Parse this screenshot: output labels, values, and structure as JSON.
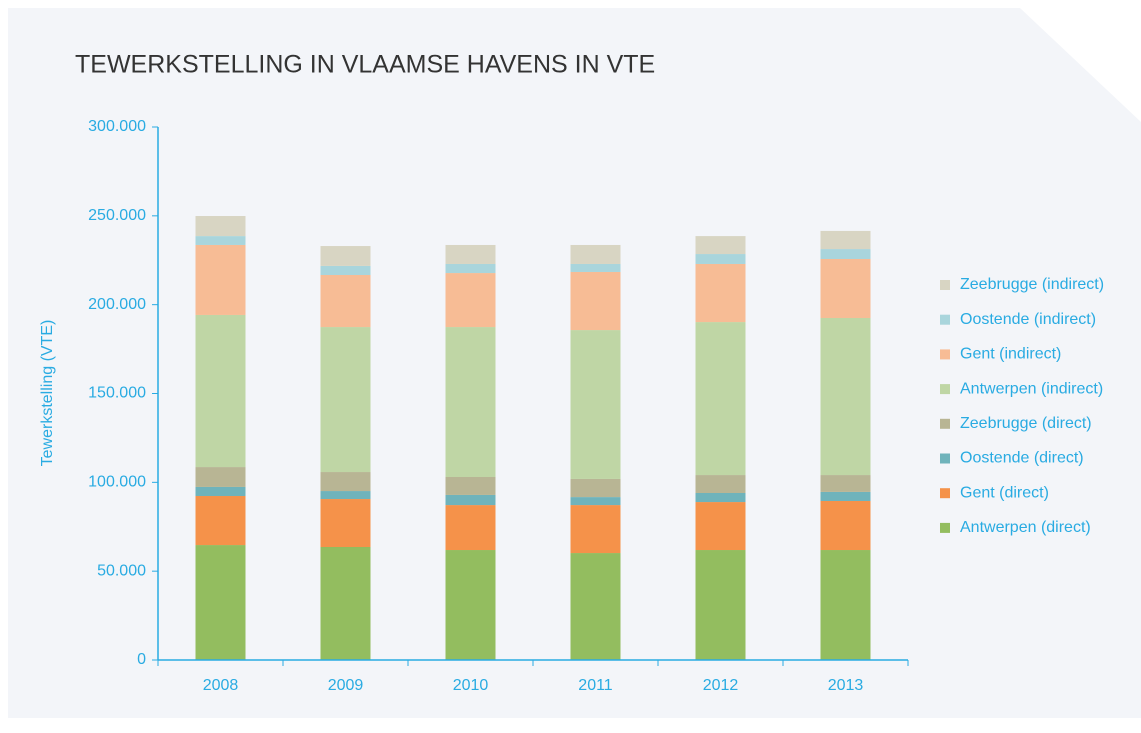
{
  "chart_data": {
    "type": "stacked_bar",
    "title": "TEWERKSTELLING IN VLAAMSE HAVENS IN VTE",
    "y_label": "Tewerkstelling (VTE)",
    "categories": [
      "2008",
      "2009",
      "2010",
      "2011",
      "2012",
      "2013"
    ],
    "series": [
      {
        "name": "Antwerpen (direct)",
        "color": "#93bd5f",
        "values": [
          64700,
          63600,
          61900,
          60200,
          61900,
          61900
        ]
      },
      {
        "name": "Gent (direct)",
        "color": "#f5924a",
        "values": [
          27600,
          27000,
          25300,
          27000,
          27000,
          27600
        ]
      },
      {
        "name": "Oostende (direct)",
        "color": "#6fb3bb",
        "values": [
          5100,
          4500,
          5700,
          4500,
          5100,
          5100
        ]
      },
      {
        "name": "Zeebrugge (direct)",
        "color": "#b8b594",
        "values": [
          11200,
          10700,
          10100,
          10200,
          10100,
          9500
        ]
      },
      {
        "name": "Antwerpen (indirect)",
        "color": "#bfd6a5",
        "values": [
          85600,
          81600,
          84400,
          83800,
          86100,
          88400
        ]
      },
      {
        "name": "Gent (indirect)",
        "color": "#f7bc95",
        "values": [
          39400,
          29300,
          30400,
          32700,
          32700,
          33200
        ]
      },
      {
        "name": "Oostende (indirect)",
        "color": "#a9d5dc",
        "values": [
          5000,
          5100,
          5100,
          4500,
          5600,
          5600
        ]
      },
      {
        "name": "Zeebrugge (indirect)",
        "color": "#d8d5c3",
        "values": [
          11300,
          11200,
          10700,
          10700,
          10100,
          10200
        ]
      }
    ],
    "ylim": [
      0,
      300000
    ],
    "yticks": [
      0,
      {
        "value": 50000,
        "label": "50.000"
      },
      {
        "value": 100000,
        "label": "100.000"
      },
      {
        "value": 150000,
        "label": "150.000"
      },
      {
        "value": 200000,
        "label": "200.000"
      },
      {
        "value": 250000,
        "label": "250.000"
      },
      {
        "value": 300000,
        "label": "300.000"
      }
    ],
    "legend": "right"
  }
}
